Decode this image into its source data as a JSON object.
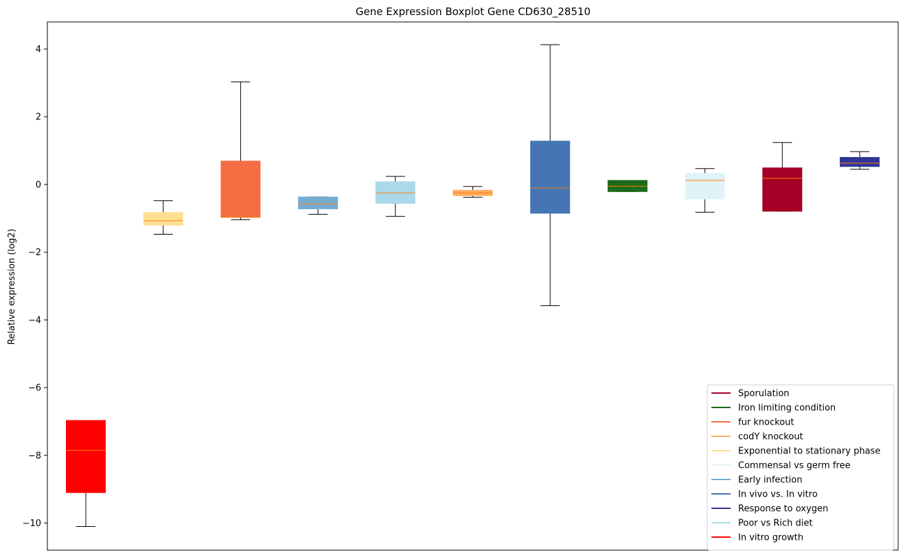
{
  "chart_data": {
    "type": "boxplot",
    "title": "Gene Expression Boxplot Gene CD630_28510",
    "xlabel": "",
    "ylabel": "Relative expression (log2)",
    "ylim": [
      -10.8,
      4.8
    ],
    "yticks": [
      -10,
      -8,
      -6,
      -4,
      -2,
      0,
      2,
      4
    ],
    "ytick_labels": [
      "−10",
      "−8",
      "−6",
      "−4",
      "−2",
      "0",
      "2",
      "4"
    ],
    "grid": false,
    "legend_position": "lower-right",
    "median_color": "#ff7f0e",
    "boxes": [
      {
        "name": "In vitro growth",
        "color": "#ff0000",
        "whislo": -10.1,
        "q1": -9.1,
        "med": -7.85,
        "q3": -6.97,
        "whishi": -6.97
      },
      {
        "name": "Exponential to stationary phase",
        "color": "#fee090",
        "whislo": -1.47,
        "q1": -1.2,
        "med": -1.07,
        "q3": -0.83,
        "whishi": -0.48
      },
      {
        "name": "fur knockout",
        "color": "#f46d43",
        "whislo": -1.04,
        "q1": -0.97,
        "med": -0.97,
        "q3": 0.69,
        "whishi": 3.03
      },
      {
        "name": "Early infection",
        "color": "#74add1",
        "whislo": -0.88,
        "q1": -0.72,
        "med": -0.57,
        "q3": -0.37,
        "whishi": -0.37
      },
      {
        "name": "Poor vs Rich diet",
        "color": "#abd9e9",
        "whislo": -0.94,
        "q1": -0.56,
        "med": -0.25,
        "q3": 0.08,
        "whishi": 0.24
      },
      {
        "name": "codY knockout",
        "color": "#fdae61",
        "whislo": -0.38,
        "q1": -0.33,
        "med": -0.25,
        "q3": -0.17,
        "whishi": -0.06
      },
      {
        "name": "In vivo vs. In vitro",
        "color": "#4575b4",
        "whislo": -3.58,
        "q1": -0.85,
        "med": -0.1,
        "q3": 1.28,
        "whishi": 4.13
      },
      {
        "name": "Iron limiting condition",
        "color": "#1a6b1a",
        "whislo": -0.21,
        "q1": -0.21,
        "med": -0.05,
        "q3": 0.12,
        "whishi": 0.12
      },
      {
        "name": "Commensal vs germ free",
        "color": "#e0f3f8",
        "whislo": -0.82,
        "q1": -0.43,
        "med": 0.12,
        "q3": 0.33,
        "whishi": 0.47
      },
      {
        "name": "Sporulation",
        "color": "#a50026",
        "whislo": -0.79,
        "q1": -0.79,
        "med": 0.18,
        "q3": 0.49,
        "whishi": 1.24
      },
      {
        "name": "Response to oxygen",
        "color": "#313695",
        "whislo": 0.45,
        "q1": 0.53,
        "med": 0.63,
        "q3": 0.8,
        "whishi": 0.97
      }
    ],
    "legend": [
      {
        "label": "Sporulation",
        "color": "#a50026"
      },
      {
        "label": "Iron limiting condition",
        "color": "#1a6b1a"
      },
      {
        "label": "fur knockout",
        "color": "#f46d43"
      },
      {
        "label": "codY knockout",
        "color": "#fdae61"
      },
      {
        "label": "Exponential to stationary phase",
        "color": "#fee090"
      },
      {
        "label": "Commensal vs germ free",
        "color": "#e0f3f8"
      },
      {
        "label": "Early infection",
        "color": "#74add1"
      },
      {
        "label": "In vivo vs. In vitro",
        "color": "#4575b4"
      },
      {
        "label": "Response to oxygen",
        "color": "#313695"
      },
      {
        "label": "Poor vs Rich diet",
        "color": "#abd9e9"
      },
      {
        "label": "In vitro growth",
        "color": "#ff0000"
      }
    ]
  }
}
